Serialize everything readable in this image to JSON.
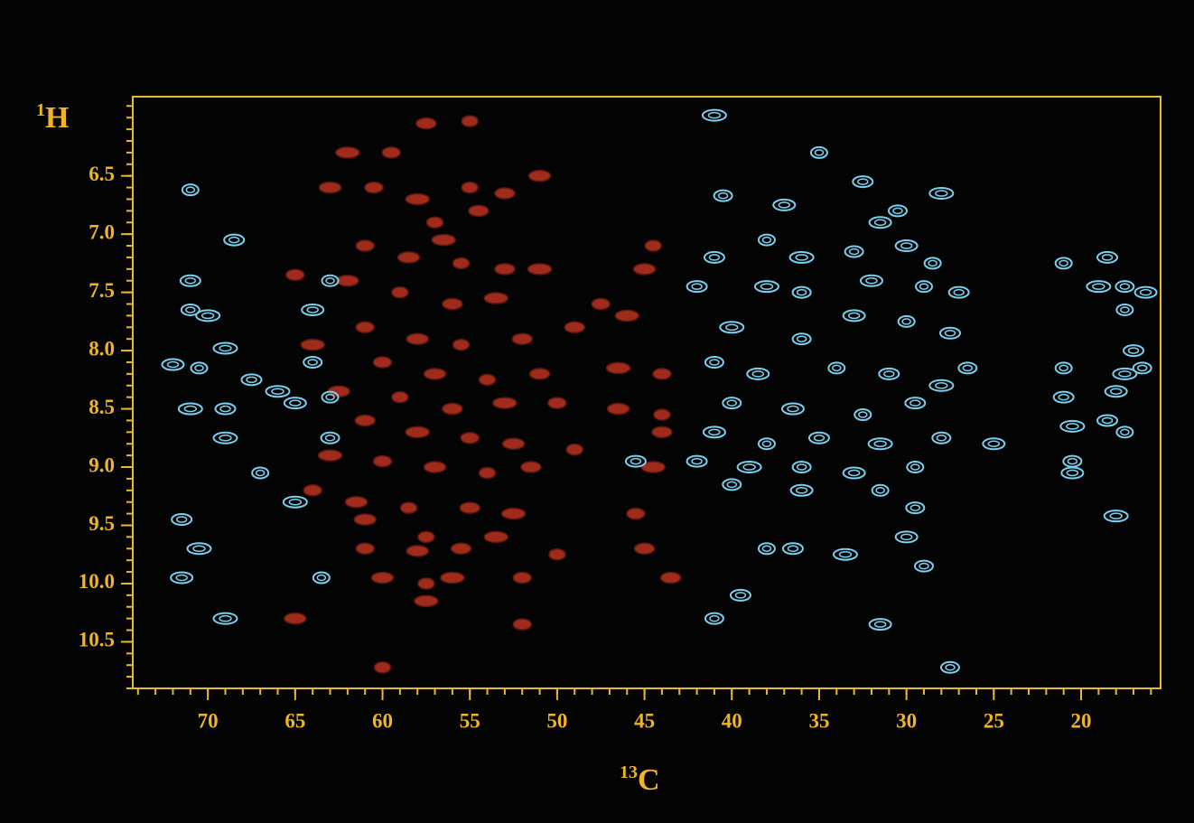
{
  "chart_data": {
    "type": "scatter",
    "ylabel": {
      "mass": "1",
      "element": "H"
    },
    "xlabel": {
      "mass": "13",
      "element": "C"
    },
    "xlim": [
      74.3,
      15.45
    ],
    "ylim": [
      5.82,
      10.9
    ],
    "xticks": [
      70,
      65,
      60,
      55,
      50,
      45,
      40,
      35,
      30,
      25,
      20
    ],
    "yticks": [
      {
        "value": 6.5,
        "label": "6.5"
      },
      {
        "value": 7,
        "label": "7.0"
      },
      {
        "value": 7.5,
        "label": "7.5"
      },
      {
        "value": 8,
        "label": "8.0"
      },
      {
        "value": 8.5,
        "label": "8.5"
      },
      {
        "value": 9,
        "label": "9.0"
      },
      {
        "value": 9.5,
        "label": "9.5"
      },
      {
        "value": 10,
        "label": "10.0"
      },
      {
        "value": 10.5,
        "label": "10.5"
      }
    ],
    "minor_ticks": {
      "x": 1,
      "y": 0.1
    },
    "axis_color": "#e8b830",
    "series": [
      {
        "color": "#b03020",
        "filled": true,
        "x": [
          55,
          57.5,
          62,
          59.5,
          51,
          55,
          53,
          58,
          60.5,
          63,
          57,
          54.5,
          56.5,
          61,
          58.5,
          55.5,
          53,
          51,
          65,
          62,
          59,
          56,
          53.5,
          47.5,
          45,
          44.5,
          49,
          46,
          61,
          58,
          55.5,
          52,
          64,
          60,
          57,
          54,
          51,
          46.5,
          44,
          62.5,
          59,
          56,
          53,
          50,
          46.5,
          44,
          61,
          58,
          55,
          52.5,
          49,
          44,
          63,
          60,
          57,
          54,
          51.5,
          44.5,
          64,
          61.5,
          58.5,
          55,
          52.5,
          45.5,
          61,
          57.5,
          55.5,
          53.5,
          61,
          58,
          50,
          45,
          56,
          52,
          60,
          57.5,
          43.5,
          57.5,
          52,
          65,
          60
        ],
        "values": [
          6.03,
          6.05,
          6.3,
          6.3,
          6.5,
          6.6,
          6.65,
          6.7,
          6.6,
          6.6,
          6.9,
          6.8,
          7.05,
          7.1,
          7.2,
          7.25,
          7.3,
          7.3,
          7.35,
          7.4,
          7.5,
          7.6,
          7.55,
          7.6,
          7.3,
          7.1,
          7.8,
          7.7,
          7.8,
          7.9,
          7.95,
          7.9,
          7.95,
          8.1,
          8.2,
          8.25,
          8.2,
          8.15,
          8.2,
          8.35,
          8.4,
          8.5,
          8.45,
          8.45,
          8.5,
          8.55,
          8.6,
          8.7,
          8.75,
          8.8,
          8.85,
          8.7,
          8.9,
          8.95,
          9.0,
          9.05,
          9.0,
          9.0,
          9.2,
          9.3,
          9.35,
          9.35,
          9.4,
          9.4,
          9.45,
          9.6,
          9.7,
          9.6,
          9.7,
          9.72,
          9.75,
          9.7,
          9.95,
          9.95,
          9.95,
          10.0,
          9.95,
          10.15,
          10.35,
          10.3,
          10.72
        ]
      },
      {
        "color": "#7ad0ee",
        "filled": false,
        "x": [
          71,
          68.5,
          41,
          40.5,
          37,
          35,
          32.5,
          28,
          30.5,
          31.5,
          38,
          41,
          36,
          33,
          30,
          28.5,
          71,
          70,
          71,
          64,
          63,
          42,
          38,
          36,
          32,
          29,
          27,
          40,
          36,
          33,
          30,
          27.5,
          69,
          64,
          72,
          70.5,
          67.5,
          66,
          41,
          38.5,
          34,
          31,
          28,
          26.5,
          65,
          63,
          69,
          71,
          40,
          36.5,
          32.5,
          29.5,
          69,
          63,
          41,
          38,
          35,
          31.5,
          28,
          25,
          67,
          42,
          39,
          36,
          33,
          29.5,
          45.5,
          65,
          40,
          36,
          31.5,
          71.5,
          70.5,
          29.5,
          30,
          38,
          36.5,
          33.5,
          29,
          71.5,
          63.5,
          39.5,
          69,
          41,
          31.5,
          21,
          21,
          20.5,
          20.5,
          20.5,
          21,
          18.5,
          19,
          17.5,
          16.3,
          17.5,
          17,
          17.5,
          16.5,
          18,
          17.5,
          18.5,
          18,
          27.5
        ],
        "values": [
          6.62,
          7.05,
          5.98,
          6.67,
          6.75,
          6.3,
          6.55,
          6.65,
          6.8,
          6.9,
          7.05,
          7.2,
          7.2,
          7.15,
          7.1,
          7.25,
          7.4,
          7.7,
          7.65,
          7.65,
          7.4,
          7.45,
          7.45,
          7.5,
          7.4,
          7.45,
          7.5,
          7.8,
          7.9,
          7.7,
          7.75,
          7.85,
          7.98,
          8.1,
          8.12,
          8.15,
          8.25,
          8.35,
          8.1,
          8.2,
          8.15,
          8.2,
          8.3,
          8.15,
          8.45,
          8.4,
          8.5,
          8.5,
          8.45,
          8.5,
          8.55,
          8.45,
          8.75,
          8.75,
          8.7,
          8.8,
          8.75,
          8.8,
          8.75,
          8.8,
          9.05,
          8.95,
          9.0,
          9.0,
          9.05,
          9.0,
          8.95,
          9.3,
          9.15,
          9.2,
          9.2,
          9.45,
          9.7,
          9.35,
          9.6,
          9.7,
          9.7,
          9.75,
          9.85,
          9.95,
          9.95,
          10.1,
          10.3,
          10.3,
          10.35,
          8.15,
          8.4,
          8.65,
          8.95,
          9.05,
          7.25,
          7.2,
          7.45,
          7.45,
          7.5,
          7.65,
          8.0,
          8.2,
          8.15,
          8.35,
          8.7,
          8.6,
          9.42,
          10.72
        ]
      }
    ]
  }
}
